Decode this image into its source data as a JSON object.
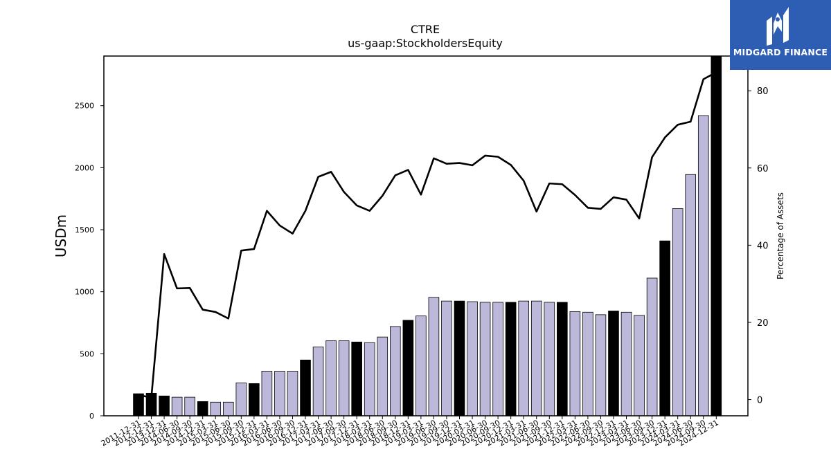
{
  "logo": {
    "text": "MIDGARD FINANCE",
    "color": "#2e5eb4"
  },
  "chart_data": {
    "type": "bar",
    "title": "CTRE",
    "subtitle": "us-gaap:StockholdersEquity",
    "ylabel": "USDm",
    "y2label": "Percentage of Assets",
    "ylim": [
      0,
      2900
    ],
    "y2lim": [
      -4.2,
      89
    ],
    "yticks": [
      0,
      500,
      1000,
      1500,
      2000,
      2500
    ],
    "y2ticks": [
      0,
      20,
      40,
      60,
      80
    ],
    "grid": false,
    "legend": "none",
    "colors": {
      "quarter_bar": "#bcb8da",
      "year_end_bar": "#000000",
      "line": "#000000"
    },
    "categories": [
      "2011-12-31",
      "2012-12-31",
      "2013-12-31",
      "2014-06-30",
      "2014-09-30",
      "2014-12-31",
      "2015-03-31",
      "2015-06-30",
      "2015-09-30",
      "2015-12-31",
      "2016-03-31",
      "2016-06-30",
      "2016-09-30",
      "2016-12-31",
      "2017-03-31",
      "2017-06-30",
      "2017-09-30",
      "2017-12-31",
      "2018-03-31",
      "2018-06-30",
      "2018-09-30",
      "2018-12-31",
      "2019-03-31",
      "2019-06-30",
      "2019-09-30",
      "2019-12-31",
      "2020-03-31",
      "2020-06-30",
      "2020-09-30",
      "2020-12-31",
      "2021-03-31",
      "2021-06-30",
      "2021-09-30",
      "2021-12-31",
      "2022-03-31",
      "2022-06-30",
      "2022-09-30",
      "2022-12-31",
      "2023-03-31",
      "2023-06-30",
      "2023-09-30",
      "2023-12-31",
      "2024-03-31",
      "2024-06-30",
      "2024-09-30",
      "2024-12-31"
    ],
    "series": [
      {
        "type": "bar",
        "axis": "left",
        "values": [
          178,
          182,
          160,
          150,
          150,
          115,
          110,
          110,
          265,
          260,
          360,
          360,
          360,
          450,
          555,
          605,
          605,
          595,
          590,
          635,
          720,
          770,
          805,
          955,
          925,
          925,
          920,
          915,
          915,
          915,
          925,
          925,
          915,
          915,
          840,
          835,
          815,
          845,
          835,
          810,
          1110,
          1410,
          1670,
          1945,
          2420,
          2900
        ],
        "year_end": [
          true,
          true,
          true,
          false,
          false,
          true,
          false,
          false,
          false,
          true,
          false,
          false,
          false,
          true,
          false,
          false,
          false,
          true,
          false,
          false,
          false,
          true,
          false,
          false,
          false,
          true,
          false,
          false,
          false,
          true,
          false,
          false,
          false,
          true,
          false,
          false,
          false,
          true,
          false,
          false,
          false,
          true,
          false,
          false,
          false,
          true
        ]
      },
      {
        "type": "line",
        "axis": "right",
        "values": [
          1.2,
          0.5,
          37.7,
          28.8,
          28.9,
          23.3,
          22.7,
          21.0,
          38.6,
          39.0,
          48.9,
          45.1,
          43.0,
          48.9,
          57.7,
          59.0,
          53.8,
          50.3,
          48.9,
          52.8,
          58.1,
          59.5,
          53.1,
          62.5,
          61.1,
          61.3,
          60.7,
          63.2,
          62.9,
          60.8,
          56.7,
          48.7,
          56.0,
          55.8,
          53.0,
          49.7,
          49.4,
          52.4,
          51.8,
          46.9,
          62.8,
          67.9,
          71.2,
          72.0,
          83.0,
          84.8
        ]
      }
    ]
  }
}
